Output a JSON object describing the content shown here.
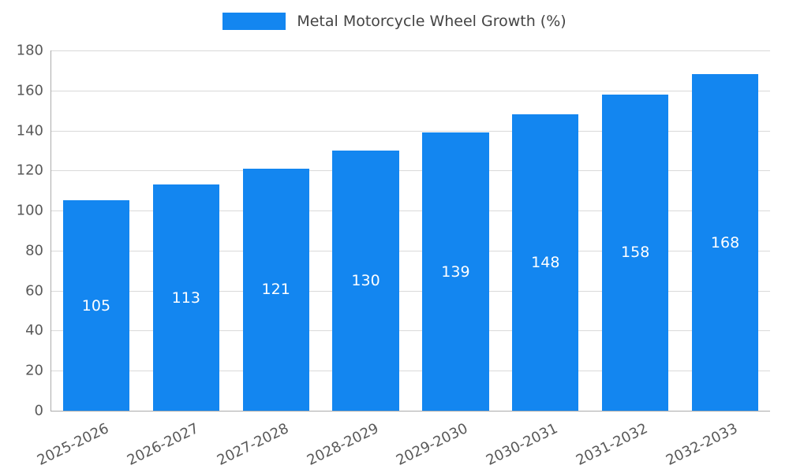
{
  "legend": {
    "swatch_color": "#1386f0",
    "label": "Metal Motorcycle Wheel Growth (%)"
  },
  "chart_data": {
    "type": "bar",
    "title": "Metal Motorcycle Wheel Growth (%)",
    "categories": [
      "2025-2026",
      "2026-2027",
      "2027-2028",
      "2028-2029",
      "2029-2030",
      "2030-2031",
      "2031-2032",
      "2032-2033"
    ],
    "values": [
      105,
      113,
      121,
      130,
      139,
      148,
      158,
      168
    ],
    "xlabel": "",
    "ylabel": "",
    "ylim": [
      0,
      180
    ],
    "ytick_step": 20,
    "grid": true,
    "legend_position": "top",
    "bar_color": "#1386f0",
    "value_label_color": "#ffffff"
  }
}
